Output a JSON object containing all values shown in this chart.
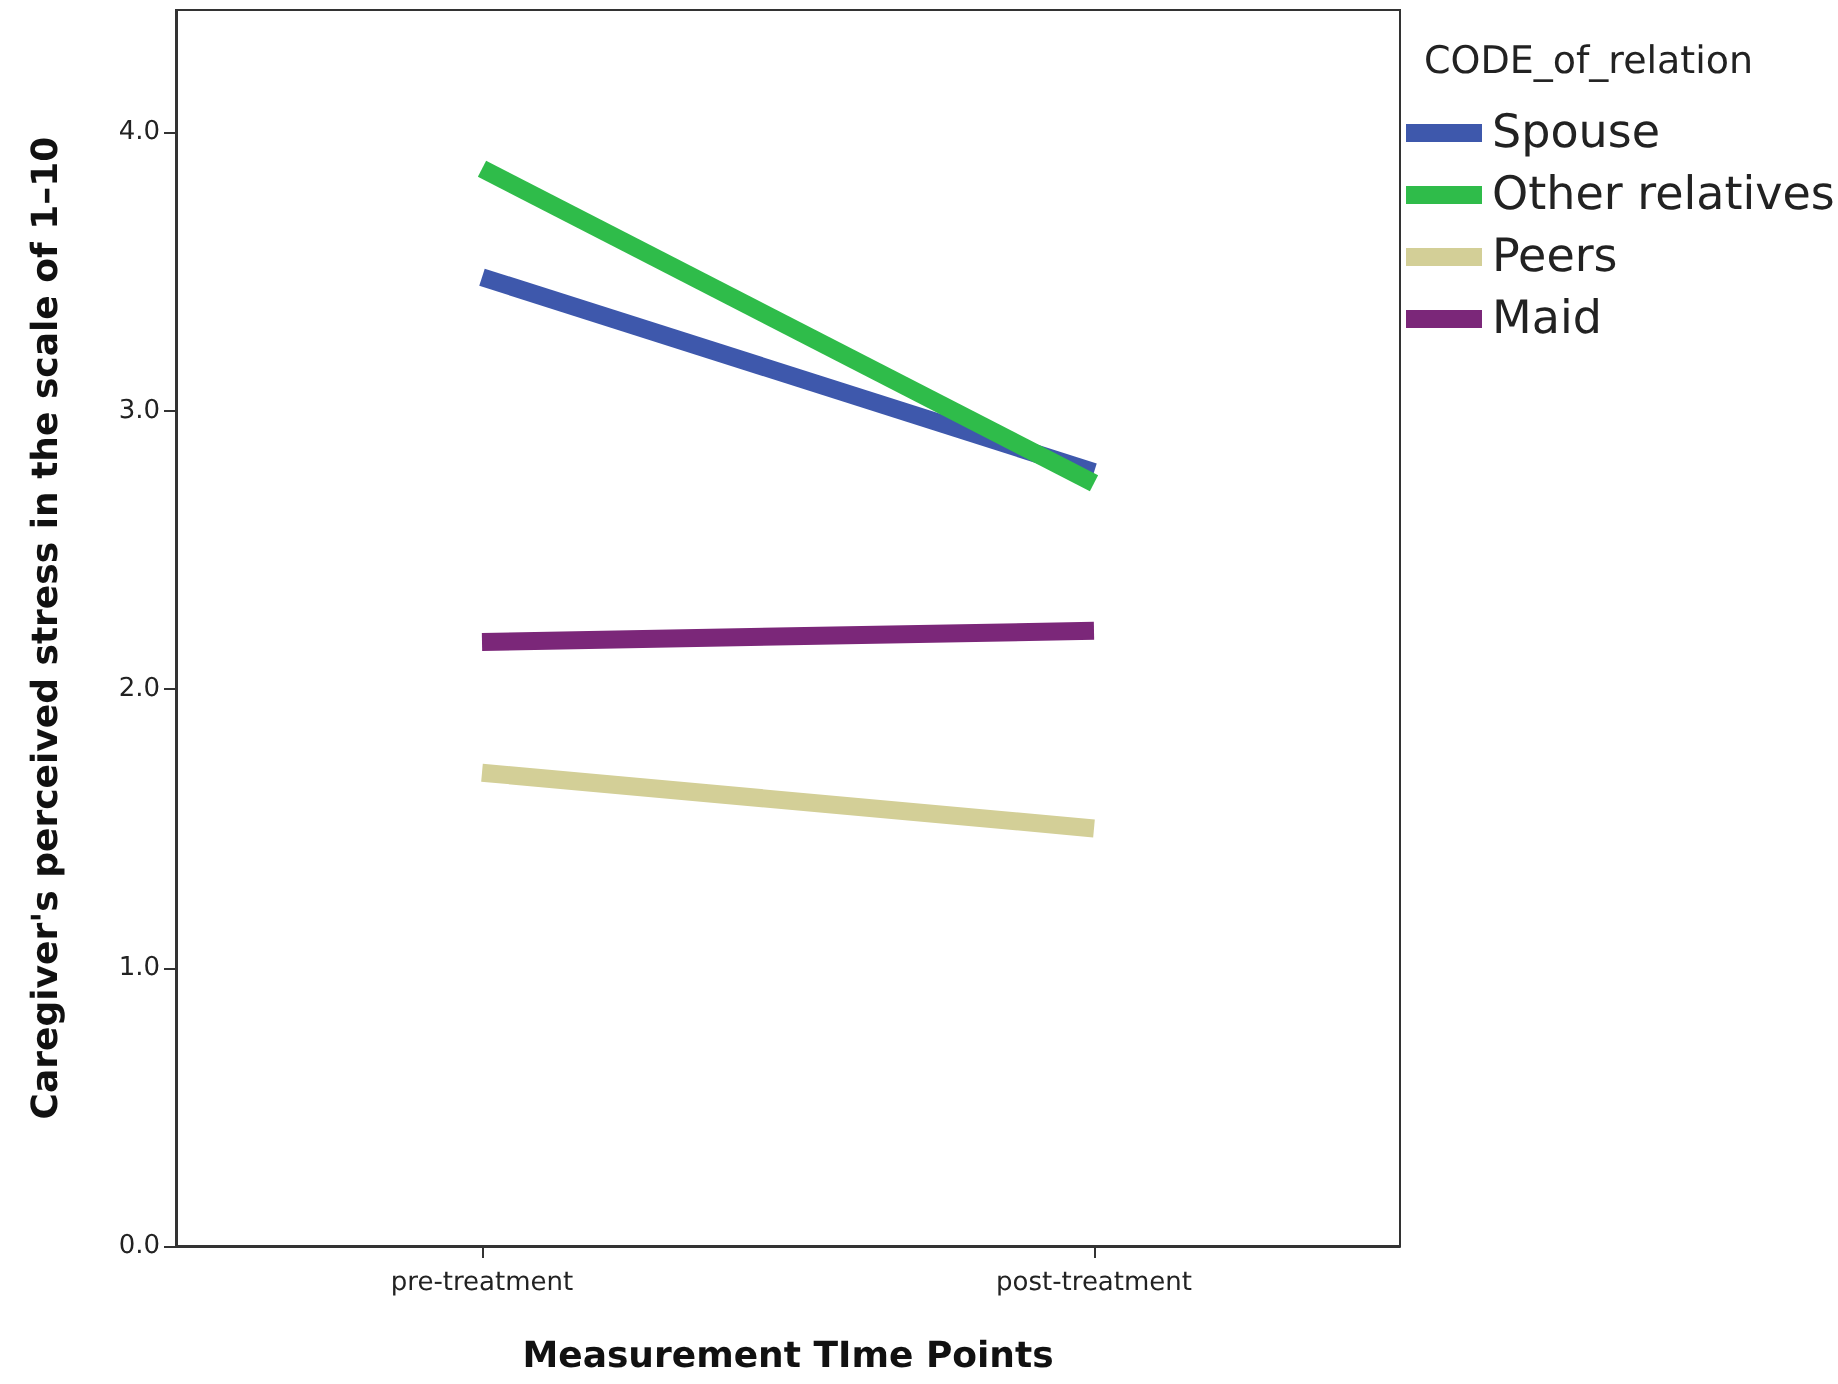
{
  "chart_data": {
    "type": "line",
    "xlabel": "Measurement TIme Points",
    "ylabel": "Caregiver's perceived stress in the scale of 1–10",
    "legend_title": "CODE_of_relation",
    "legend": "top right",
    "grid": false,
    "marker": "none",
    "line_style": "solid",
    "categories": [
      "pre-treatment",
      "post-treatment"
    ],
    "ylim": [
      0,
      4.44
    ],
    "yticks": [
      {
        "value": 0,
        "label": "0.0"
      },
      {
        "value": 1,
        "label": "1.0"
      },
      {
        "value": 2,
        "label": "2.0"
      },
      {
        "value": 3,
        "label": "3.0"
      },
      {
        "value": 4,
        "label": "4.0"
      }
    ],
    "series": [
      {
        "name": "Spouse",
        "color": "#3e58ac",
        "values": [
          3.48,
          2.78
        ]
      },
      {
        "name": "Other relatives",
        "color": "#2fbc4a",
        "values": [
          3.87,
          2.74
        ]
      },
      {
        "name": "Peers",
        "color": "#d3cf97",
        "values": [
          1.7,
          1.5
        ]
      },
      {
        "name": "Maid",
        "color": "#7b2779",
        "values": [
          2.17,
          2.21
        ]
      }
    ]
  }
}
